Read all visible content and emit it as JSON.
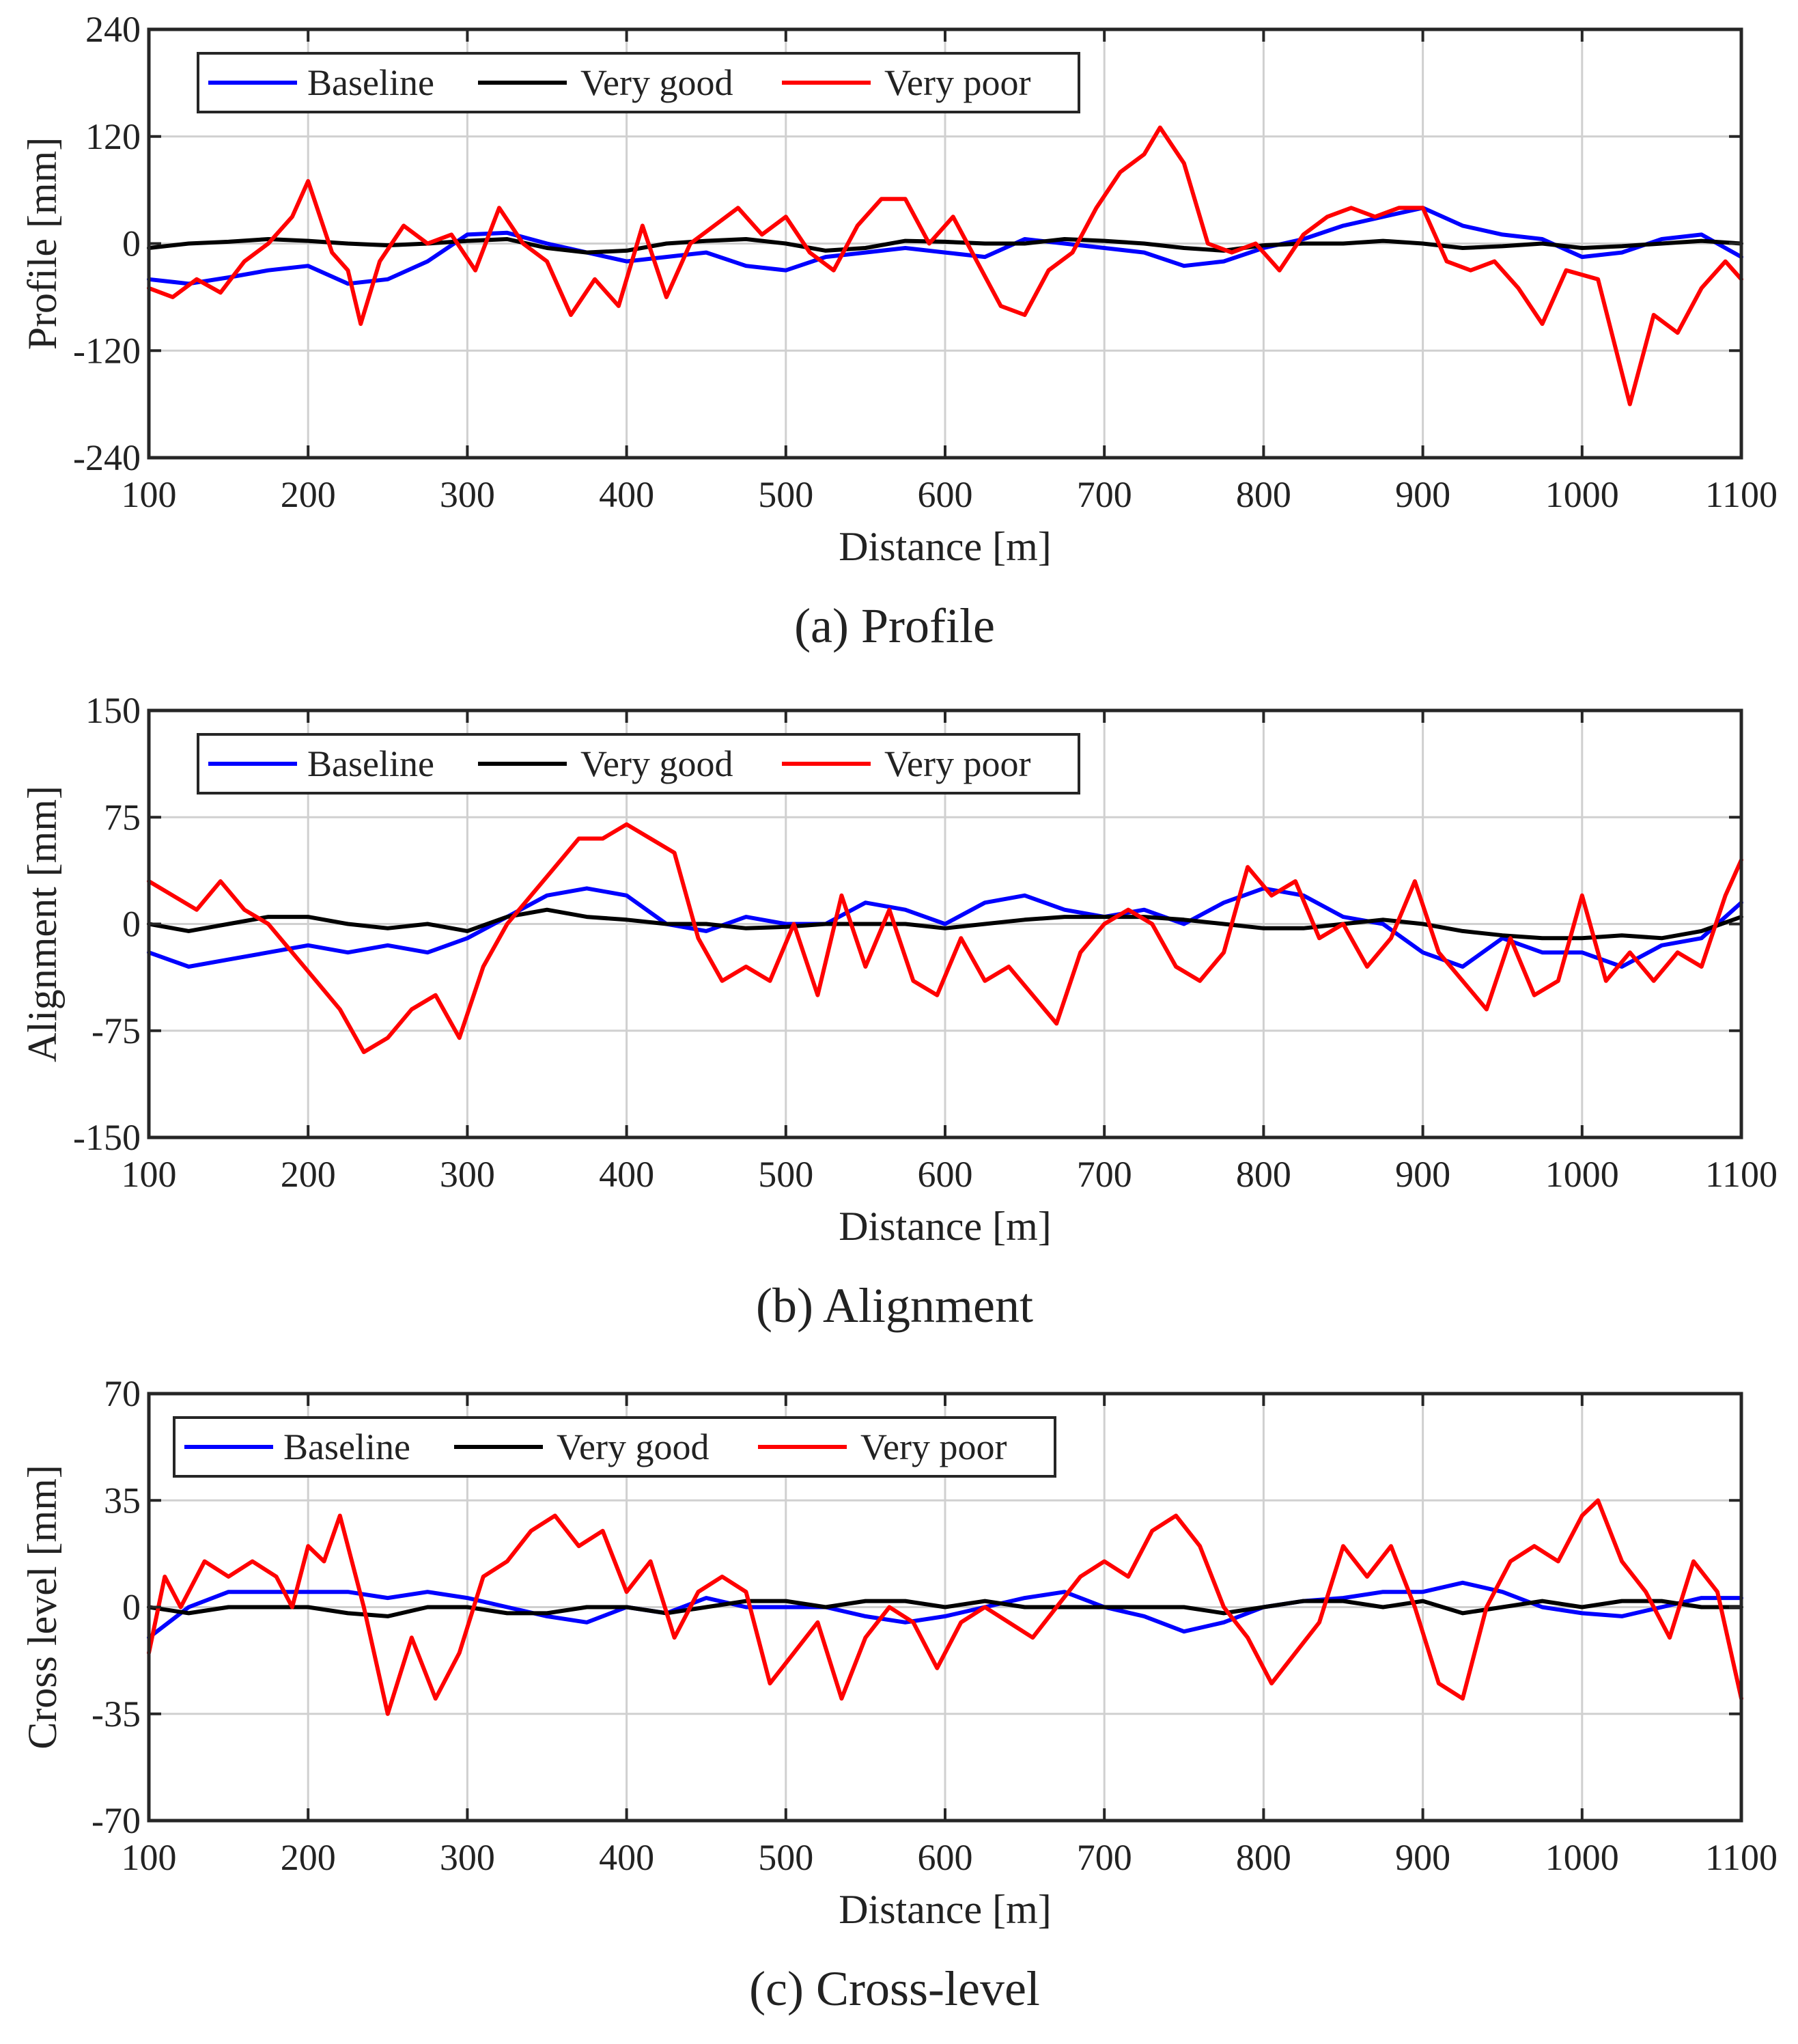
{
  "figure": {
    "colors": {
      "baseline": "#0000FF",
      "very_good": "#000000",
      "very_poor": "#FF0000",
      "grid": "#D0D0D0",
      "axes": "#262626"
    }
  },
  "chart_data": [
    {
      "type": "line",
      "caption": "(a) Profile",
      "xlabel": "Distance [m]",
      "ylabel": "Profile [mm]",
      "xlim": [
        100,
        1100
      ],
      "ylim": [
        -240,
        240
      ],
      "xticks": [
        100,
        200,
        300,
        400,
        500,
        600,
        700,
        800,
        900,
        1000,
        1100
      ],
      "yticks": [
        -240,
        -120,
        0,
        120,
        240
      ],
      "grid": true,
      "legend": {
        "placement": "top-left",
        "entries": [
          "Baseline",
          "Very good",
          "Very poor"
        ]
      },
      "series": [
        {
          "name": "Baseline",
          "color": "#0000FF",
          "x": [
            100,
            125,
            150,
            175,
            200,
            225,
            250,
            275,
            300,
            325,
            350,
            375,
            400,
            425,
            450,
            475,
            500,
            525,
            550,
            575,
            600,
            625,
            650,
            675,
            700,
            725,
            750,
            775,
            800,
            825,
            850,
            875,
            900,
            925,
            950,
            975,
            1000,
            1025,
            1050,
            1075,
            1100
          ],
          "y": [
            -40,
            -45,
            -38,
            -30,
            -25,
            -45,
            -40,
            -20,
            10,
            12,
            0,
            -10,
            -20,
            -15,
            -10,
            -25,
            -30,
            -15,
            -10,
            -5,
            -10,
            -15,
            5,
            0,
            -5,
            -10,
            -25,
            -20,
            -5,
            5,
            20,
            30,
            40,
            20,
            10,
            5,
            -15,
            -10,
            5,
            10,
            -15
          ]
        },
        {
          "name": "Very good",
          "color": "#000000",
          "x": [
            100,
            125,
            150,
            175,
            200,
            225,
            250,
            275,
            300,
            325,
            350,
            375,
            400,
            425,
            450,
            475,
            500,
            525,
            550,
            575,
            600,
            625,
            650,
            675,
            700,
            725,
            750,
            775,
            800,
            825,
            850,
            875,
            900,
            925,
            950,
            975,
            1000,
            1025,
            1050,
            1075,
            1100
          ],
          "y": [
            -5,
            0,
            2,
            5,
            3,
            0,
            -2,
            0,
            3,
            5,
            -5,
            -10,
            -8,
            0,
            3,
            5,
            0,
            -8,
            -5,
            3,
            2,
            0,
            0,
            5,
            3,
            0,
            -5,
            -8,
            -2,
            0,
            0,
            3,
            0,
            -5,
            -3,
            0,
            -5,
            -3,
            0,
            3,
            0
          ]
        },
        {
          "name": "Very poor",
          "color": "#FF0000",
          "x": [
            100,
            115,
            130,
            145,
            160,
            175,
            190,
            200,
            215,
            225,
            233,
            245,
            260,
            275,
            290,
            305,
            320,
            335,
            350,
            365,
            380,
            395,
            410,
            425,
            440,
            455,
            470,
            485,
            500,
            515,
            530,
            545,
            560,
            575,
            590,
            605,
            620,
            635,
            650,
            665,
            680,
            695,
            710,
            725,
            735,
            750,
            765,
            780,
            795,
            810,
            825,
            840,
            855,
            870,
            885,
            900,
            915,
            930,
            945,
            960,
            975,
            990,
            1010,
            1030,
            1045,
            1060,
            1075,
            1090,
            1100
          ],
          "y": [
            -50,
            -60,
            -40,
            -55,
            -20,
            0,
            30,
            70,
            -10,
            -30,
            -90,
            -20,
            20,
            0,
            10,
            -30,
            40,
            0,
            -20,
            -80,
            -40,
            -70,
            20,
            -60,
            0,
            20,
            40,
            10,
            30,
            -10,
            -30,
            20,
            50,
            50,
            0,
            30,
            -20,
            -70,
            -80,
            -30,
            -10,
            40,
            80,
            100,
            130,
            90,
            0,
            -10,
            0,
            -30,
            10,
            30,
            40,
            30,
            40,
            40,
            -20,
            -30,
            -20,
            -50,
            -90,
            -30,
            -40,
            -180,
            -80,
            -100,
            -50,
            -20,
            -40
          ]
        }
      ]
    },
    {
      "type": "line",
      "caption": "(b) Alignment",
      "xlabel": "Distance [m]",
      "ylabel": "Alignment [mm]",
      "xlim": [
        100,
        1100
      ],
      "ylim": [
        -150,
        150
      ],
      "xticks": [
        100,
        200,
        300,
        400,
        500,
        600,
        700,
        800,
        900,
        1000,
        1100
      ],
      "yticks": [
        -150,
        -75,
        0,
        75,
        150
      ],
      "grid": true,
      "legend": {
        "placement": "top-left",
        "entries": [
          "Baseline",
          "Very good",
          "Very poor"
        ]
      },
      "series": [
        {
          "name": "Baseline",
          "color": "#0000FF",
          "x": [
            100,
            125,
            150,
            175,
            200,
            225,
            250,
            275,
            300,
            325,
            350,
            375,
            400,
            425,
            450,
            475,
            500,
            525,
            550,
            575,
            600,
            625,
            650,
            675,
            700,
            725,
            750,
            775,
            800,
            825,
            850,
            875,
            900,
            925,
            950,
            975,
            1000,
            1025,
            1050,
            1075,
            1100
          ],
          "y": [
            -20,
            -30,
            -25,
            -20,
            -15,
            -20,
            -15,
            -20,
            -10,
            5,
            20,
            25,
            20,
            0,
            -5,
            5,
            0,
            0,
            15,
            10,
            0,
            15,
            20,
            10,
            5,
            10,
            0,
            15,
            25,
            20,
            5,
            0,
            -20,
            -30,
            -10,
            -20,
            -20,
            -30,
            -15,
            -10,
            15
          ]
        },
        {
          "name": "Very good",
          "color": "#000000",
          "x": [
            100,
            125,
            150,
            175,
            200,
            225,
            250,
            275,
            300,
            325,
            350,
            375,
            400,
            425,
            450,
            475,
            500,
            525,
            550,
            575,
            600,
            625,
            650,
            675,
            700,
            725,
            750,
            775,
            800,
            825,
            850,
            875,
            900,
            925,
            950,
            975,
            1000,
            1025,
            1050,
            1075,
            1100
          ],
          "y": [
            0,
            -5,
            0,
            5,
            5,
            0,
            -3,
            0,
            -5,
            5,
            10,
            5,
            3,
            0,
            0,
            -3,
            -2,
            0,
            0,
            0,
            -3,
            0,
            3,
            5,
            5,
            5,
            3,
            0,
            -3,
            -3,
            0,
            3,
            0,
            -5,
            -8,
            -10,
            -10,
            -8,
            -10,
            -5,
            5
          ]
        },
        {
          "name": "Very poor",
          "color": "#FF0000",
          "x": [
            100,
            115,
            130,
            145,
            160,
            175,
            190,
            205,
            220,
            235,
            250,
            265,
            280,
            295,
            310,
            325,
            340,
            355,
            370,
            385,
            400,
            415,
            430,
            445,
            460,
            475,
            490,
            505,
            520,
            535,
            550,
            565,
            580,
            595,
            610,
            625,
            640,
            655,
            670,
            685,
            700,
            715,
            730,
            745,
            760,
            775,
            790,
            805,
            820,
            835,
            850,
            865,
            880,
            895,
            910,
            925,
            940,
            955,
            970,
            985,
            1000,
            1015,
            1030,
            1045,
            1060,
            1075,
            1090,
            1100
          ],
          "y": [
            30,
            20,
            10,
            30,
            10,
            0,
            -20,
            -40,
            -60,
            -90,
            -80,
            -60,
            -50,
            -80,
            -30,
            0,
            20,
            40,
            60,
            60,
            70,
            60,
            50,
            -10,
            -40,
            -30,
            -40,
            0,
            -50,
            20,
            -30,
            10,
            -40,
            -50,
            -10,
            -40,
            -30,
            -50,
            -70,
            -20,
            0,
            10,
            0,
            -30,
            -40,
            -20,
            40,
            20,
            30,
            -10,
            0,
            -30,
            -10,
            30,
            -20,
            -40,
            -60,
            -10,
            -50,
            -40,
            20,
            -40,
            -20,
            -40,
            -20,
            -30,
            20,
            45
          ]
        }
      ]
    },
    {
      "type": "line",
      "caption": "(c) Cross-level",
      "xlabel": "Distance [m]",
      "ylabel": "Cross level [mm]",
      "xlim": [
        100,
        1100
      ],
      "ylim": [
        -70,
        70
      ],
      "xticks": [
        100,
        200,
        300,
        400,
        500,
        600,
        700,
        800,
        900,
        1000,
        1100
      ],
      "yticks": [
        -70,
        -35,
        0,
        35,
        70
      ],
      "grid": true,
      "legend": {
        "placement": "top-left",
        "entries": [
          "Baseline",
          "Very good",
          "Very poor"
        ]
      },
      "series": [
        {
          "name": "Baseline",
          "color": "#0000FF",
          "x": [
            100,
            125,
            150,
            175,
            200,
            225,
            250,
            275,
            300,
            325,
            350,
            375,
            400,
            425,
            450,
            475,
            500,
            525,
            550,
            575,
            600,
            625,
            650,
            675,
            700,
            725,
            750,
            775,
            800,
            825,
            850,
            875,
            900,
            925,
            950,
            975,
            1000,
            1025,
            1050,
            1075,
            1100
          ],
          "y": [
            -10,
            0,
            5,
            5,
            5,
            5,
            3,
            5,
            3,
            0,
            -3,
            -5,
            0,
            -2,
            3,
            0,
            0,
            0,
            -3,
            -5,
            -3,
            0,
            3,
            5,
            0,
            -3,
            -8,
            -5,
            0,
            2,
            3,
            5,
            5,
            8,
            5,
            0,
            -2,
            -3,
            0,
            3,
            3
          ]
        },
        {
          "name": "Very good",
          "color": "#000000",
          "x": [
            100,
            125,
            150,
            175,
            200,
            225,
            250,
            275,
            300,
            325,
            350,
            375,
            400,
            425,
            450,
            475,
            500,
            525,
            550,
            575,
            600,
            625,
            650,
            675,
            700,
            725,
            750,
            775,
            800,
            825,
            850,
            875,
            900,
            925,
            950,
            975,
            1000,
            1025,
            1050,
            1075,
            1100
          ],
          "y": [
            0,
            -2,
            0,
            0,
            0,
            -2,
            -3,
            0,
            0,
            -2,
            -2,
            0,
            0,
            -2,
            0,
            2,
            2,
            0,
            2,
            2,
            0,
            2,
            0,
            0,
            0,
            0,
            0,
            -2,
            0,
            2,
            2,
            0,
            2,
            -2,
            0,
            2,
            0,
            2,
            2,
            0,
            0
          ]
        },
        {
          "name": "Very poor",
          "color": "#FF0000",
          "x": [
            100,
            110,
            120,
            135,
            150,
            165,
            180,
            190,
            200,
            210,
            220,
            235,
            250,
            265,
            280,
            295,
            310,
            325,
            340,
            355,
            370,
            385,
            400,
            415,
            430,
            445,
            460,
            475,
            490,
            505,
            520,
            535,
            550,
            565,
            580,
            595,
            610,
            625,
            640,
            655,
            670,
            685,
            700,
            715,
            730,
            745,
            760,
            775,
            790,
            805,
            820,
            835,
            850,
            865,
            880,
            895,
            910,
            925,
            940,
            955,
            970,
            985,
            1000,
            1010,
            1025,
            1040,
            1055,
            1070,
            1085,
            1100
          ],
          "y": [
            -15,
            10,
            0,
            15,
            10,
            15,
            10,
            0,
            20,
            15,
            30,
            0,
            -35,
            -10,
            -30,
            -15,
            10,
            15,
            25,
            30,
            20,
            25,
            5,
            15,
            -10,
            5,
            10,
            5,
            -25,
            -15,
            -5,
            -30,
            -10,
            0,
            -5,
            -20,
            -5,
            0,
            -5,
            -10,
            0,
            10,
            15,
            10,
            25,
            30,
            20,
            0,
            -10,
            -25,
            -15,
            -5,
            20,
            10,
            20,
            0,
            -25,
            -30,
            0,
            15,
            20,
            15,
            30,
            35,
            15,
            5,
            -10,
            15,
            5,
            -30
          ]
        }
      ]
    }
  ]
}
